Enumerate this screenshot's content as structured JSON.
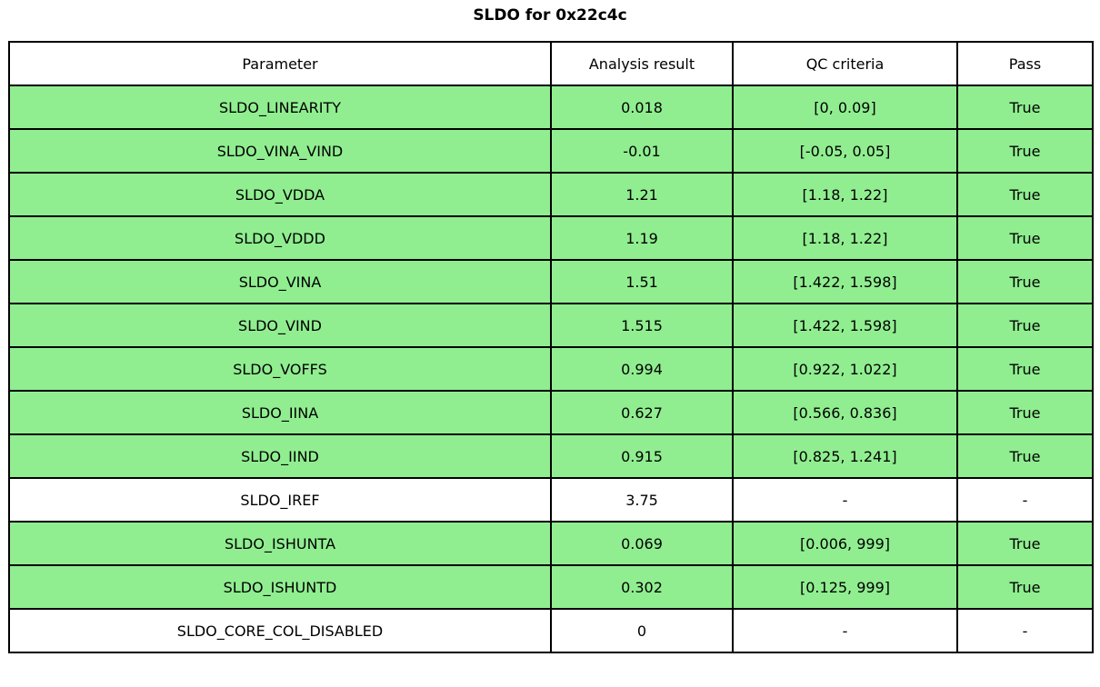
{
  "title": "SLDO for 0x22c4c",
  "colors": {
    "pass_green": "#90EE90",
    "default_row": "#ffffff",
    "border": "#000000"
  },
  "chart_data": {
    "type": "table",
    "title": "SLDO for 0x22c4c",
    "columns": [
      "Parameter",
      "Analysis result",
      "QC criteria",
      "Pass"
    ],
    "rows": [
      {
        "parameter": "SLDO_LINEARITY",
        "result": "0.018",
        "criteria": "[0, 0.09]",
        "pass": "True",
        "highlight": true
      },
      {
        "parameter": "SLDO_VINA_VIND",
        "result": "-0.01",
        "criteria": "[-0.05, 0.05]",
        "pass": "True",
        "highlight": true
      },
      {
        "parameter": "SLDO_VDDA",
        "result": "1.21",
        "criteria": "[1.18, 1.22]",
        "pass": "True",
        "highlight": true
      },
      {
        "parameter": "SLDO_VDDD",
        "result": "1.19",
        "criteria": "[1.18, 1.22]",
        "pass": "True",
        "highlight": true
      },
      {
        "parameter": "SLDO_VINA",
        "result": "1.51",
        "criteria": "[1.422, 1.598]",
        "pass": "True",
        "highlight": true
      },
      {
        "parameter": "SLDO_VIND",
        "result": "1.515",
        "criteria": "[1.422, 1.598]",
        "pass": "True",
        "highlight": true
      },
      {
        "parameter": "SLDO_VOFFS",
        "result": "0.994",
        "criteria": "[0.922, 1.022]",
        "pass": "True",
        "highlight": true
      },
      {
        "parameter": "SLDO_IINA",
        "result": "0.627",
        "criteria": "[0.566, 0.836]",
        "pass": "True",
        "highlight": true
      },
      {
        "parameter": "SLDO_IIND",
        "result": "0.915",
        "criteria": "[0.825, 1.241]",
        "pass": "True",
        "highlight": true
      },
      {
        "parameter": "SLDO_IREF",
        "result": "3.75",
        "criteria": "-",
        "pass": "-",
        "highlight": false
      },
      {
        "parameter": "SLDO_ISHUNTA",
        "result": "0.069",
        "criteria": "[0.006, 999]",
        "pass": "True",
        "highlight": true
      },
      {
        "parameter": "SLDO_ISHUNTD",
        "result": "0.302",
        "criteria": "[0.125, 999]",
        "pass": "True",
        "highlight": true
      },
      {
        "parameter": "SLDO_CORE_COL_DISABLED",
        "result": "0",
        "criteria": "-",
        "pass": "-",
        "highlight": false
      }
    ]
  }
}
